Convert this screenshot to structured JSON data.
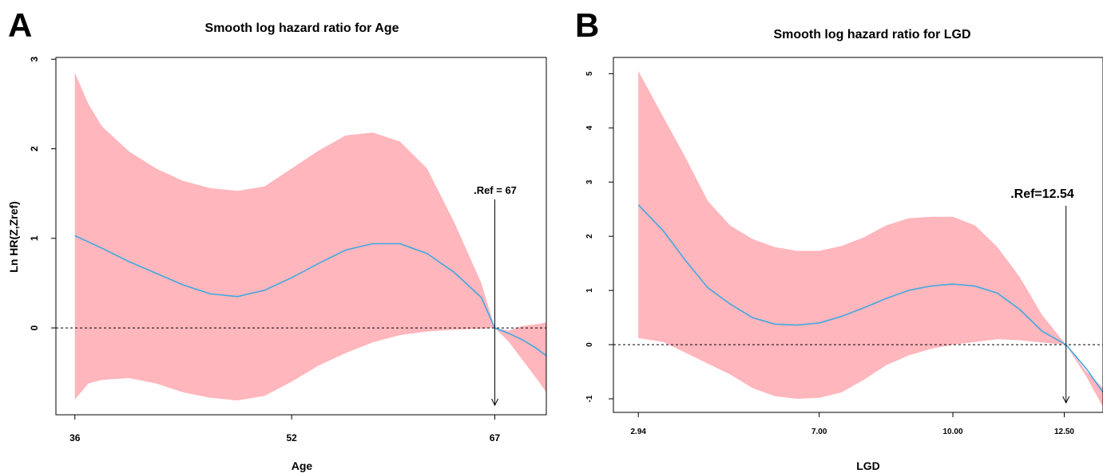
{
  "chart_data": [
    {
      "panel": "A",
      "type": "area",
      "title": "Smooth log hazard ratio for Age",
      "xlabel": "Age",
      "ylabel": "Ln HR(Z,Zref)",
      "x_ticks": [
        36,
        52,
        67
      ],
      "y_ticks": [
        0,
        1,
        2,
        3
      ],
      "xlim": [
        34.6,
        70.8
      ],
      "ylim": [
        -0.97,
        3.02
      ],
      "ref_value": 67,
      "ref_label": ".Ref = 67",
      "zero_line": "dashed",
      "band_color": "#ffb6bc",
      "line_color": "#3fa9e1",
      "series": [
        {
          "role": "estimate",
          "x": [
            36,
            38,
            40,
            42,
            44,
            46,
            48,
            50,
            52,
            54,
            56,
            58,
            60,
            62,
            64,
            66,
            67,
            68,
            69,
            70,
            70.8
          ],
          "values": [
            1.03,
            0.89,
            0.74,
            0.61,
            0.48,
            0.38,
            0.35,
            0.42,
            0.56,
            0.72,
            0.87,
            0.94,
            0.94,
            0.83,
            0.62,
            0.34,
            0.0,
            -0.06,
            -0.13,
            -0.22,
            -0.31
          ]
        },
        {
          "role": "upper",
          "x": [
            36,
            37,
            38,
            40,
            42,
            44,
            46,
            48,
            50,
            52,
            54,
            56,
            58,
            60,
            62,
            64,
            66,
            67,
            68,
            69,
            70,
            70.8
          ],
          "values": [
            2.85,
            2.5,
            2.25,
            1.97,
            1.78,
            1.64,
            1.56,
            1.53,
            1.58,
            1.78,
            1.98,
            2.15,
            2.18,
            2.08,
            1.78,
            1.18,
            0.5,
            0.0,
            -0.03,
            0.02,
            0.04,
            0.06
          ]
        },
        {
          "role": "lower",
          "x": [
            36,
            37,
            38,
            40,
            42,
            44,
            46,
            48,
            50,
            52,
            54,
            56,
            58,
            60,
            62,
            64,
            66,
            67,
            68,
            69,
            70,
            70.8
          ],
          "values": [
            -0.8,
            -0.62,
            -0.58,
            -0.56,
            -0.62,
            -0.72,
            -0.78,
            -0.81,
            -0.76,
            -0.6,
            -0.42,
            -0.28,
            -0.16,
            -0.08,
            -0.04,
            -0.02,
            -0.01,
            0.0,
            -0.15,
            -0.35,
            -0.55,
            -0.72
          ]
        }
      ]
    },
    {
      "panel": "B",
      "type": "area",
      "title": "Smooth log hazard ratio for LGD",
      "xlabel": "LGD",
      "ylabel": "",
      "x_ticks": [
        2.94,
        7.0,
        10.0,
        12.5
      ],
      "x_tick_labels": [
        "2.94",
        "7.00",
        "10.00",
        "12.50"
      ],
      "y_ticks": [
        -1,
        0,
        1,
        2,
        3,
        4,
        5
      ],
      "xlim": [
        2.38,
        13.37
      ],
      "ylim": [
        -1.25,
        5.3
      ],
      "ref_value": 12.54,
      "ref_label": ".Ref=12.54",
      "zero_line": "dashed",
      "band_color": "#ffb6bc",
      "line_color": "#3fa9e1",
      "series": [
        {
          "role": "estimate",
          "x": [
            2.94,
            3.5,
            4.0,
            4.5,
            5.0,
            5.5,
            6.0,
            6.5,
            7.0,
            7.5,
            8.0,
            8.5,
            9.0,
            9.5,
            10.0,
            10.5,
            11.0,
            11.5,
            12.0,
            12.54,
            13.0,
            13.37
          ],
          "values": [
            2.58,
            2.1,
            1.55,
            1.05,
            0.75,
            0.5,
            0.38,
            0.36,
            0.4,
            0.52,
            0.68,
            0.85,
            1.0,
            1.08,
            1.12,
            1.08,
            0.95,
            0.65,
            0.25,
            0.0,
            -0.45,
            -0.88
          ]
        },
        {
          "role": "upper",
          "x": [
            2.94,
            3.5,
            4.0,
            4.5,
            5.0,
            5.5,
            6.0,
            6.5,
            7.0,
            7.5,
            8.0,
            8.5,
            9.0,
            9.5,
            10.0,
            10.5,
            11.0,
            11.5,
            12.0,
            12.54,
            13.0,
            13.37
          ],
          "values": [
            5.05,
            4.2,
            3.45,
            2.65,
            2.2,
            1.95,
            1.8,
            1.73,
            1.73,
            1.82,
            1.98,
            2.2,
            2.33,
            2.36,
            2.36,
            2.2,
            1.8,
            1.25,
            0.55,
            0.0,
            -0.5,
            -0.8
          ]
        },
        {
          "role": "lower",
          "x": [
            2.94,
            3.5,
            4.0,
            4.5,
            5.0,
            5.5,
            6.0,
            6.5,
            7.0,
            7.5,
            8.0,
            8.5,
            9.0,
            9.5,
            10.0,
            10.5,
            11.0,
            11.5,
            12.0,
            12.54,
            13.0,
            13.37
          ],
          "values": [
            0.12,
            0.05,
            -0.15,
            -0.35,
            -0.55,
            -0.8,
            -0.95,
            -1.0,
            -0.98,
            -0.88,
            -0.65,
            -0.38,
            -0.2,
            -0.08,
            0.0,
            0.05,
            0.1,
            0.08,
            0.04,
            0.0,
            -0.6,
            -1.15
          ]
        }
      ]
    }
  ]
}
